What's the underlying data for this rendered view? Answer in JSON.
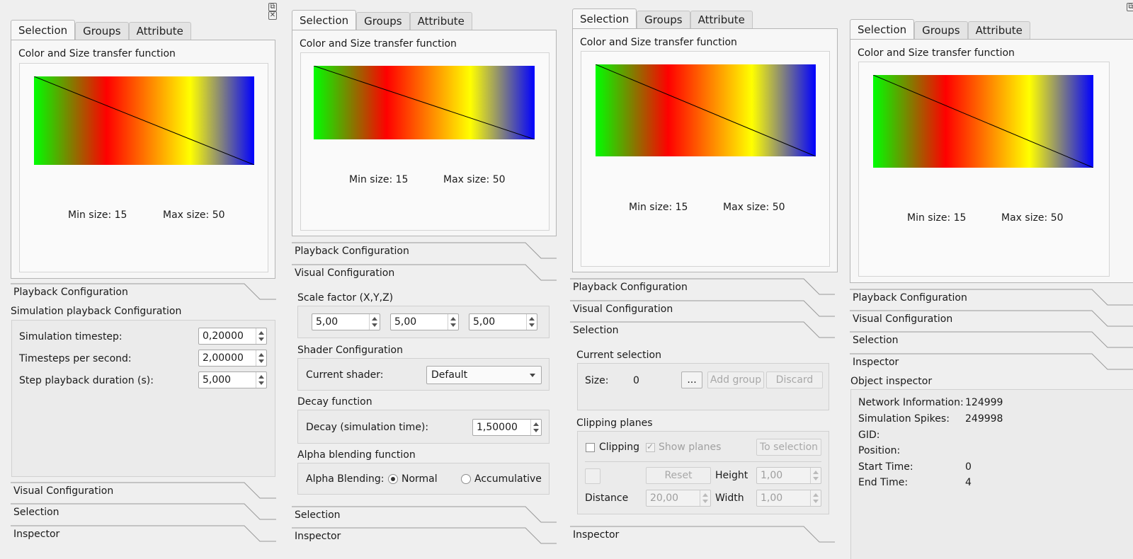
{
  "tabs": [
    "Selection",
    "Groups",
    "Attribute"
  ],
  "tf": {
    "title": "Color and Size transfer function",
    "min_size": "Min size: 15",
    "max_size": "Max size: 50"
  },
  "sections": {
    "playback": "Playback Configuration",
    "visual": "Visual Configuration",
    "selection": "Selection",
    "inspector": "Inspector"
  },
  "window_icons": {
    "float": "⧉",
    "close": "✕"
  },
  "playback": {
    "title": "Simulation playback Configuration",
    "timestep_label": "Simulation timestep:",
    "timestep_value": "0,20000",
    "tps_label": "Timesteps per second:",
    "tps_value": "2,00000",
    "duration_label": "Step playback duration (s):",
    "duration_value": "5,000"
  },
  "visual": {
    "scale_title": "Scale factor (X,Y,Z)",
    "scale_x": "5,00",
    "scale_y": "5,00",
    "scale_z": "5,00",
    "shader_title": "Shader Configuration",
    "shader_label": "Current shader:",
    "shader_value": "Default",
    "decay_title": "Decay function",
    "decay_label": "Decay (simulation time):",
    "decay_value": "1,50000",
    "alpha_title": "Alpha blending function",
    "alpha_label": "Alpha Blending:",
    "alpha_normal": "Normal",
    "alpha_accum": "Accumulative",
    "alpha_selected": "Normal"
  },
  "selection": {
    "current_title": "Current selection",
    "size_label": "Size:",
    "size_value": "0",
    "more_button": "...",
    "add_group_button": "Add group",
    "discard_button": "Discard",
    "clipping_title": "Clipping planes",
    "clipping_label": "Clipping",
    "show_planes_label": "Show planes",
    "to_selection_button": "To selection",
    "reset_button": "Reset",
    "height_label": "Height",
    "height_value": "1,00",
    "distance_label": "Distance",
    "distance_value": "20,00",
    "width_label": "Width",
    "width_value": "1,00"
  },
  "inspector": {
    "title": "Object inspector",
    "rows": [
      {
        "label": "Network Information:",
        "value": "124999"
      },
      {
        "label": "Simulation Spikes:",
        "value": "249998"
      },
      {
        "label": "GID:",
        "value": ""
      },
      {
        "label": "Position:",
        "value": ""
      },
      {
        "label": "Start Time:",
        "value": "0"
      },
      {
        "label": "End Time:",
        "value": "4"
      }
    ]
  },
  "colors": {
    "gradient": [
      "#00ff00",
      "#ff0000",
      "#ff8000",
      "#ffff00",
      "#0000ff"
    ]
  }
}
